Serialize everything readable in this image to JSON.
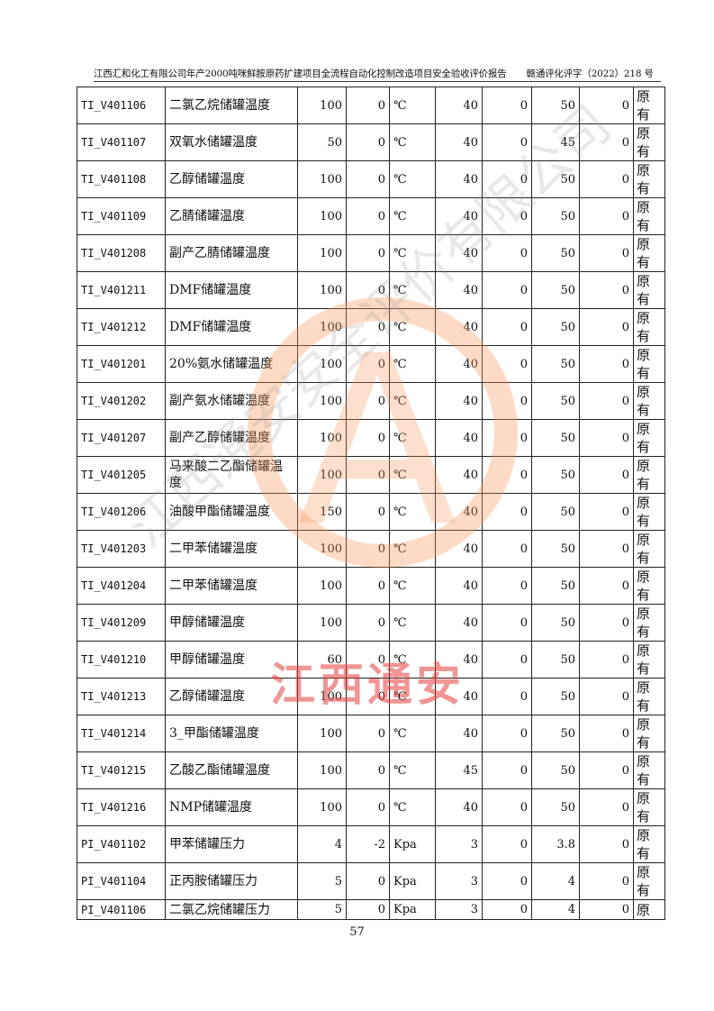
{
  "header": {
    "title": "江西汇和化工有限公司年产2000吨咪鲜胺原药扩建项目全流程自动化控制改造项目安全验收评价报告",
    "ref": "赣通评化评字（2022）218 号"
  },
  "rows": [
    [
      "TI_V401106",
      "二氯乙烷储罐温度",
      "100",
      "0",
      "℃",
      "40",
      "0",
      "50",
      "0",
      "原有"
    ],
    [
      "TI_V401107",
      "双氧水储罐温度",
      "50",
      "0",
      "℃",
      "40",
      "0",
      "45",
      "0",
      "原有"
    ],
    [
      "TI_V401108",
      "乙醇储罐温度",
      "100",
      "0",
      "℃",
      "40",
      "0",
      "50",
      "0",
      "原有"
    ],
    [
      "TI_V401109",
      "乙腈储罐温度",
      "100",
      "0",
      "℃",
      "40",
      "0",
      "50",
      "0",
      "原有"
    ],
    [
      "TI_V401208",
      "副产乙腈储罐温度",
      "100",
      "0",
      "℃",
      "40",
      "0",
      "50",
      "0",
      "原有"
    ],
    [
      "TI_V401211",
      "DMF储罐温度",
      "100",
      "0",
      "℃",
      "40",
      "0",
      "50",
      "0",
      "原有"
    ],
    [
      "TI_V401212",
      "DMF储罐温度",
      "100",
      "0",
      "℃",
      "40",
      "0",
      "50",
      "0",
      "原有"
    ],
    [
      "TI_V401201",
      "20%氨水储罐温度",
      "100",
      "0",
      "℃",
      "40",
      "0",
      "50",
      "0",
      "原有"
    ],
    [
      "TI_V401202",
      "副产氨水储罐温度",
      "100",
      "0",
      "℃",
      "40",
      "0",
      "50",
      "0",
      "原有"
    ],
    [
      "TI_V401207",
      "副产乙醇储罐温度",
      "100",
      "0",
      "℃",
      "40",
      "0",
      "50",
      "0",
      "原有"
    ],
    [
      "TI_V401205",
      "马来酸二乙酯储罐温度",
      "100",
      "0",
      "℃",
      "40",
      "0",
      "50",
      "0",
      "原有"
    ],
    [
      "TI_V401206",
      "油酸甲酯储罐温度",
      "150",
      "0",
      "℃",
      "40",
      "0",
      "50",
      "0",
      "原有"
    ],
    [
      "TI_V401203",
      "二甲苯储罐温度",
      "100",
      "0",
      "℃",
      "40",
      "0",
      "50",
      "0",
      "原有"
    ],
    [
      "TI_V401204",
      "二甲苯储罐温度",
      "100",
      "0",
      "℃",
      "40",
      "0",
      "50",
      "0",
      "原有"
    ],
    [
      "TI_V401209",
      "甲醇储罐温度",
      "100",
      "0",
      "℃",
      "40",
      "0",
      "50",
      "0",
      "原有"
    ],
    [
      "TI_V401210",
      "甲醇储罐温度",
      "60",
      "0",
      "℃",
      "40",
      "0",
      "50",
      "0",
      "原有"
    ],
    [
      "TI_V401213",
      "乙醇储罐温度",
      "100",
      "0",
      "℃",
      "40",
      "0",
      "50",
      "0",
      "原有"
    ],
    [
      "TI_V401214",
      "3_甲酯储罐温度",
      "100",
      "0",
      "℃",
      "40",
      "0",
      "50",
      "0",
      "原有"
    ],
    [
      "TI_V401215",
      "乙酸乙酯储罐温度",
      "100",
      "0",
      "℃",
      "45",
      "0",
      "50",
      "0",
      "原有"
    ],
    [
      "TI_V401216",
      "NMP储罐温度",
      "100",
      "0",
      "℃",
      "40",
      "0",
      "50",
      "0",
      "原有"
    ],
    [
      "PI_V401102",
      "甲苯储罐压力",
      "4",
      "-2",
      "Kpa",
      "3",
      "0",
      "3.8",
      "0",
      "原有"
    ],
    [
      "PI_V401104",
      "正丙胺储罐压力",
      "5",
      "0",
      "Kpa",
      "3",
      "0",
      "4",
      "0",
      "原有"
    ],
    [
      "PI_V401106",
      "二氯乙烷储罐压力",
      "5",
      "0",
      "Kpa",
      "3",
      "0",
      "4",
      "0",
      "原"
    ]
  ],
  "page_number": "57",
  "watermark": {
    "text": "江西通安",
    "diagonal": "江西通安安全评价有限公司",
    "logo_letter": "A",
    "color": "#f5965a"
  }
}
